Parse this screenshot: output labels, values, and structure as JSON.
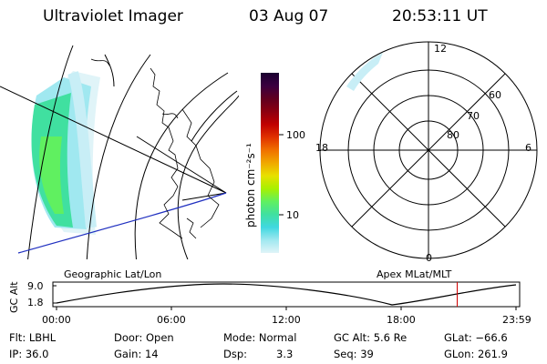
{
  "header": {
    "title": "Ultraviolet Imager",
    "date": "03 Aug 07",
    "time": "20:53:11 UT"
  },
  "colorbar": {
    "unit_label": "photon cm⁻²s⁻¹",
    "ticks": [
      "100",
      "10"
    ],
    "colors": [
      "#1a0030",
      "#3a0040",
      "#600020",
      "#8c0010",
      "#c00000",
      "#e03000",
      "#f07000",
      "#f0a800",
      "#e8e000",
      "#a8f000",
      "#60f060",
      "#40e0a0",
      "#40d8e0",
      "#a0e8f0",
      "#e0f4f8"
    ]
  },
  "polar_plot": {
    "mlt_labels": {
      "top": "12",
      "left": "18",
      "right": "6",
      "bottom": "0"
    },
    "lat_labels": [
      "60",
      "70",
      "80"
    ]
  },
  "timeline": {
    "left_label": "Geographic Lat/Lon",
    "right_label": "Apex  MLat/MLT",
    "axis_title": "GC Alt",
    "y_ticks": [
      "9.0",
      "1.8"
    ],
    "x_ticks": [
      "00:00",
      "06:00",
      "12:00",
      "18:00",
      "23:59"
    ],
    "current_time_fraction": 0.872
  },
  "status": {
    "flt": "Flt: LBHL",
    "ip": "IP: 36.0",
    "door": "Door: Open",
    "gain": "Gain: 14",
    "mode": "Mode: Normal",
    "dsp_label": "Dsp:",
    "dsp_value": "3.3",
    "gc_alt": "GC Alt: 5.6 Re",
    "seq": "Seq: 39",
    "glat": "GLat: −66.6",
    "glon": "GLon: 261.9"
  }
}
